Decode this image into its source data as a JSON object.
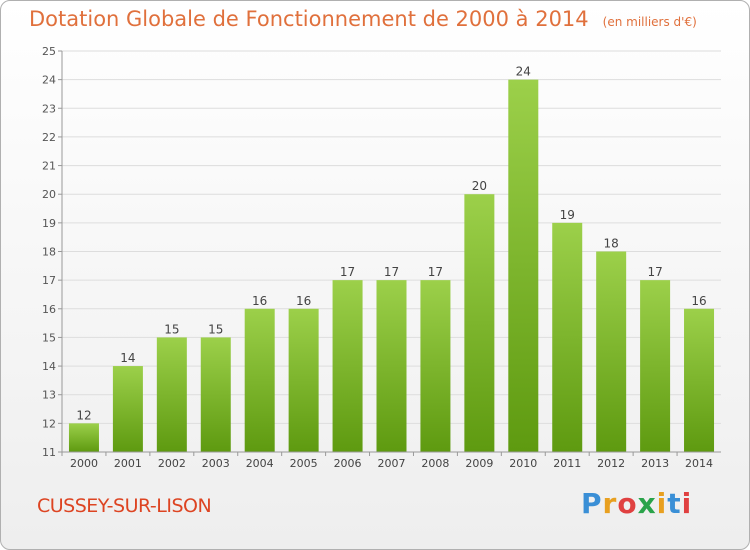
{
  "title": "Dotation Globale de Fonctionnement de 2000 à 2014",
  "unit": "(en milliers d'€)",
  "commune": "CUSSEY-SUR-LISON",
  "logo": "Proxiti",
  "colors": {
    "title": "#e0703c",
    "bar_top": "#9cd04a",
    "bar_bottom": "#5e9a10",
    "grid": "#dddddd",
    "axis": "#999999"
  },
  "chart_data": {
    "type": "bar",
    "title": "Dotation Globale de Fonctionnement de 2000 à 2014",
    "subtitle": "(en milliers d'€)",
    "xlabel": "",
    "ylabel": "",
    "categories": [
      "2000",
      "2001",
      "2002",
      "2003",
      "2004",
      "2005",
      "2006",
      "2007",
      "2008",
      "2009",
      "2010",
      "2011",
      "2012",
      "2013",
      "2014"
    ],
    "values": [
      12,
      14,
      15,
      15,
      16,
      16,
      17,
      17,
      17,
      20,
      24,
      19,
      18,
      17,
      16
    ],
    "ylim": [
      11,
      25
    ],
    "yticks": [
      11,
      12,
      13,
      14,
      15,
      16,
      17,
      18,
      19,
      20,
      21,
      22,
      23,
      24,
      25
    ],
    "grid": true,
    "legend": "none"
  }
}
